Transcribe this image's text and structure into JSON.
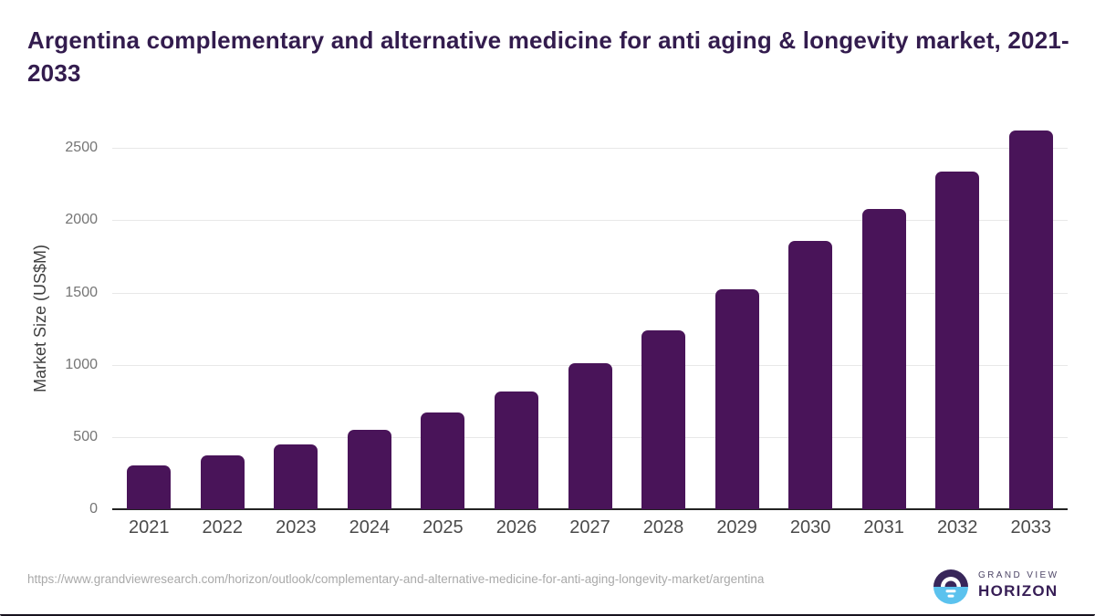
{
  "page": {
    "title": "Argentina complementary and alternative medicine for anti aging & longevity market, 2021-2033"
  },
  "chart_data": {
    "type": "bar",
    "title": "Argentina complementary and alternative medicine for anti aging & longevity market, 2021-2033",
    "categories": [
      "2021",
      "2022",
      "2023",
      "2024",
      "2025",
      "2026",
      "2027",
      "2028",
      "2029",
      "2030",
      "2031",
      "2032",
      "2033"
    ],
    "values": [
      305,
      370,
      450,
      550,
      670,
      815,
      1010,
      1240,
      1520,
      1855,
      2075,
      2340,
      2620
    ],
    "xlabel": "",
    "ylabel": "Market Size (US$M)",
    "yticks": [
      0,
      500,
      1000,
      1500,
      2000,
      2500
    ],
    "ylim": [
      0,
      2640
    ],
    "grid": true,
    "legend": false,
    "bar_color": "#491459"
  },
  "footer": {
    "source_url": "https://www.grandviewresearch.com/horizon/outlook/complementary-and-alternative-medicine-for-anti-aging-longevity-market/argentina",
    "brand": {
      "top": "GRAND VIEW",
      "bottom": "HORIZON"
    }
  },
  "colors": {
    "title": "#331C4E",
    "bar": "#491459",
    "axis_line": "#222222",
    "gridline": "#E8E8E8",
    "y_tick": "#757575",
    "x_tick": "#4A4A4A",
    "axis_label": "#404040",
    "url": "#A9A9A9",
    "brand_purple": "#38265A",
    "brand_blue": "#5BC2EE",
    "brand_text_top": "#4D4566",
    "brand_text_bottom": "#371E56"
  }
}
